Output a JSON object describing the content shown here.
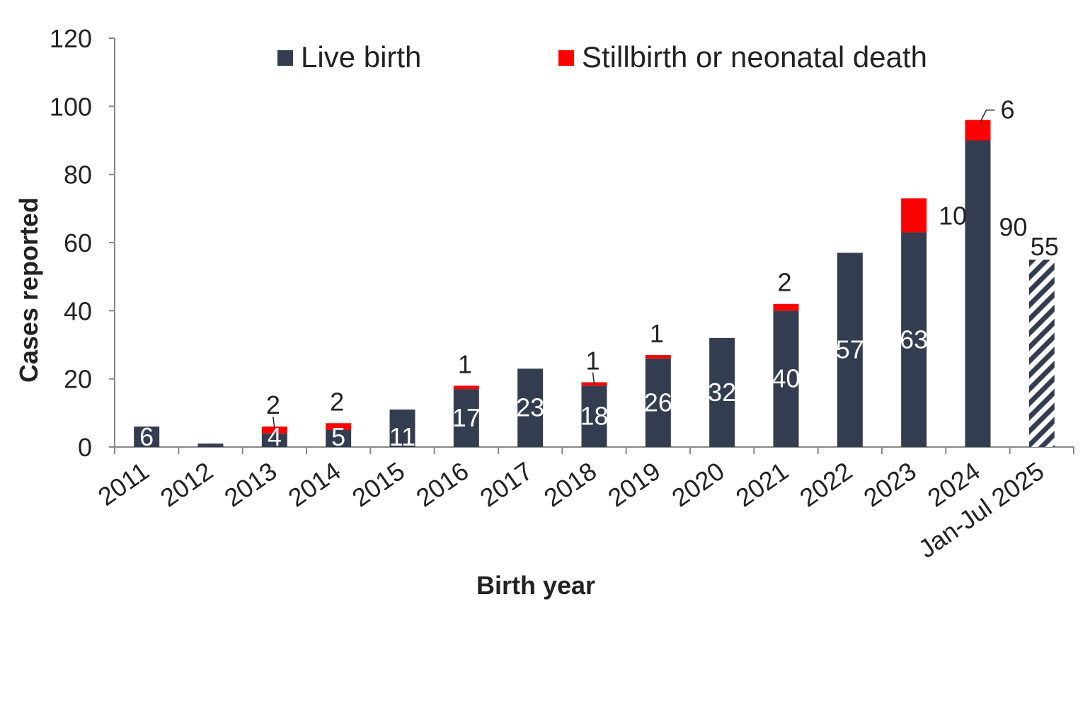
{
  "chart_data": {
    "type": "bar",
    "stacked": true,
    "title": "",
    "xlabel": "Birth year",
    "ylabel": "Cases reported",
    "ylim": [
      0,
      120
    ],
    "yticks": [
      "0",
      "20",
      "40",
      "60",
      "80",
      "100",
      "120"
    ],
    "categories": [
      "2011",
      "2012",
      "2013",
      "2014",
      "2015",
      "2016",
      "2017",
      "2018",
      "2019",
      "2020",
      "2021",
      "2022",
      "2023",
      "2024",
      "Jan-Jul 2025"
    ],
    "legend_position": "top",
    "series": [
      {
        "name": "Live birth",
        "color": "#333d4f",
        "values": [
          6,
          1,
          4,
          5,
          11,
          17,
          23,
          18,
          26,
          32,
          40,
          57,
          63,
          90,
          55
        ],
        "labels": [
          "6",
          "",
          "4",
          "5",
          "11",
          "17",
          "23",
          "18",
          "26",
          "32",
          "40",
          "57",
          "63",
          "90",
          "55"
        ]
      },
      {
        "name": "Stillbirth or neonatal death",
        "color": "#ff0000",
        "values": [
          0,
          0,
          2,
          2,
          0,
          1,
          0,
          1,
          1,
          0,
          2,
          0,
          10,
          6,
          0
        ],
        "labels": [
          "",
          "",
          "2",
          "2",
          "",
          "1",
          "",
          "1",
          "1",
          "",
          "2",
          "",
          "10",
          "6",
          ""
        ]
      }
    ],
    "partial_period_category": "Jan-Jul 2025",
    "partial_period_pattern": "diagonal-stripes"
  }
}
